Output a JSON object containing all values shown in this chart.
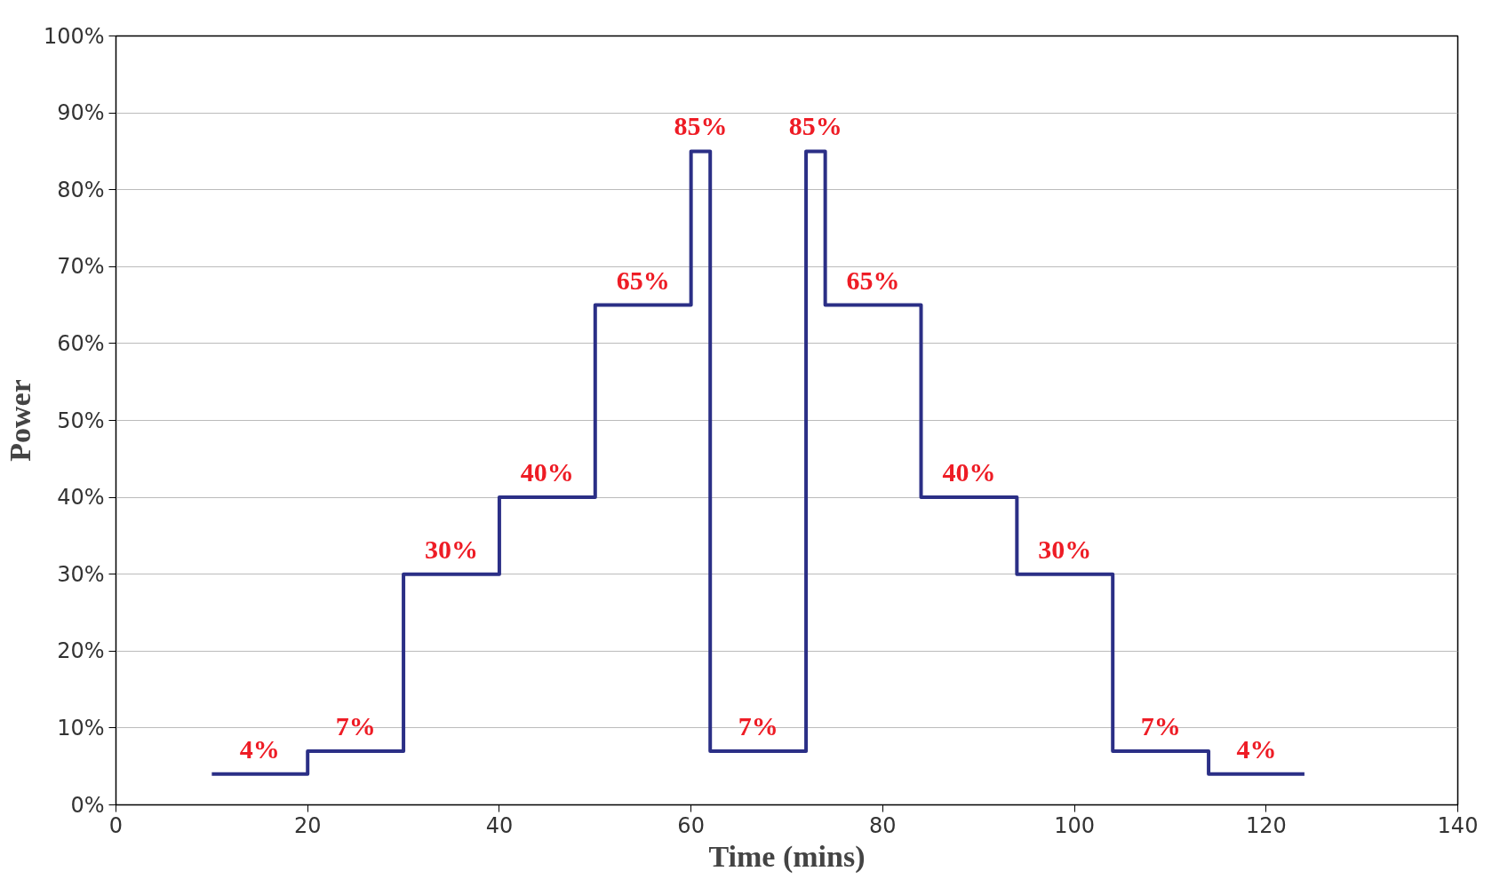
{
  "chart_data": {
    "type": "step",
    "xlabel": "Time (mins)",
    "ylabel": "Power",
    "x": [
      10,
      20,
      30,
      40,
      50,
      60,
      62,
      72,
      74,
      84,
      94,
      104,
      114,
      124
    ],
    "series": [
      {
        "color": "#2b2f86",
        "values": [
          4,
          7,
          30,
          40,
          65,
          85,
          7,
          85,
          65,
          40,
          30,
          7,
          4,
          4
        ],
        "value_labels": [
          "4%",
          "7%",
          "30%",
          "40%",
          "65%",
          "85%",
          "7%",
          "85%",
          "65%",
          "40%",
          "30%",
          "7%",
          "4%",
          null
        ]
      }
    ],
    "xlim": [
      0,
      140
    ],
    "xticks": [
      0,
      20,
      40,
      60,
      80,
      100,
      120,
      140
    ],
    "ylim": [
      0,
      100
    ],
    "yticks": [
      {
        "value": 0,
        "label": "0%"
      },
      {
        "value": 10,
        "label": "10%"
      },
      {
        "value": 20,
        "label": "20%"
      },
      {
        "value": 30,
        "label": "30%"
      },
      {
        "value": 40,
        "label": "40%"
      },
      {
        "value": 50,
        "label": "50%"
      },
      {
        "value": 60,
        "label": "60%"
      },
      {
        "value": 70,
        "label": "70%"
      },
      {
        "value": 80,
        "label": "80%"
      },
      {
        "value": 90,
        "label": "90%"
      },
      {
        "value": 100,
        "label": "100%"
      }
    ],
    "grid": "y"
  }
}
